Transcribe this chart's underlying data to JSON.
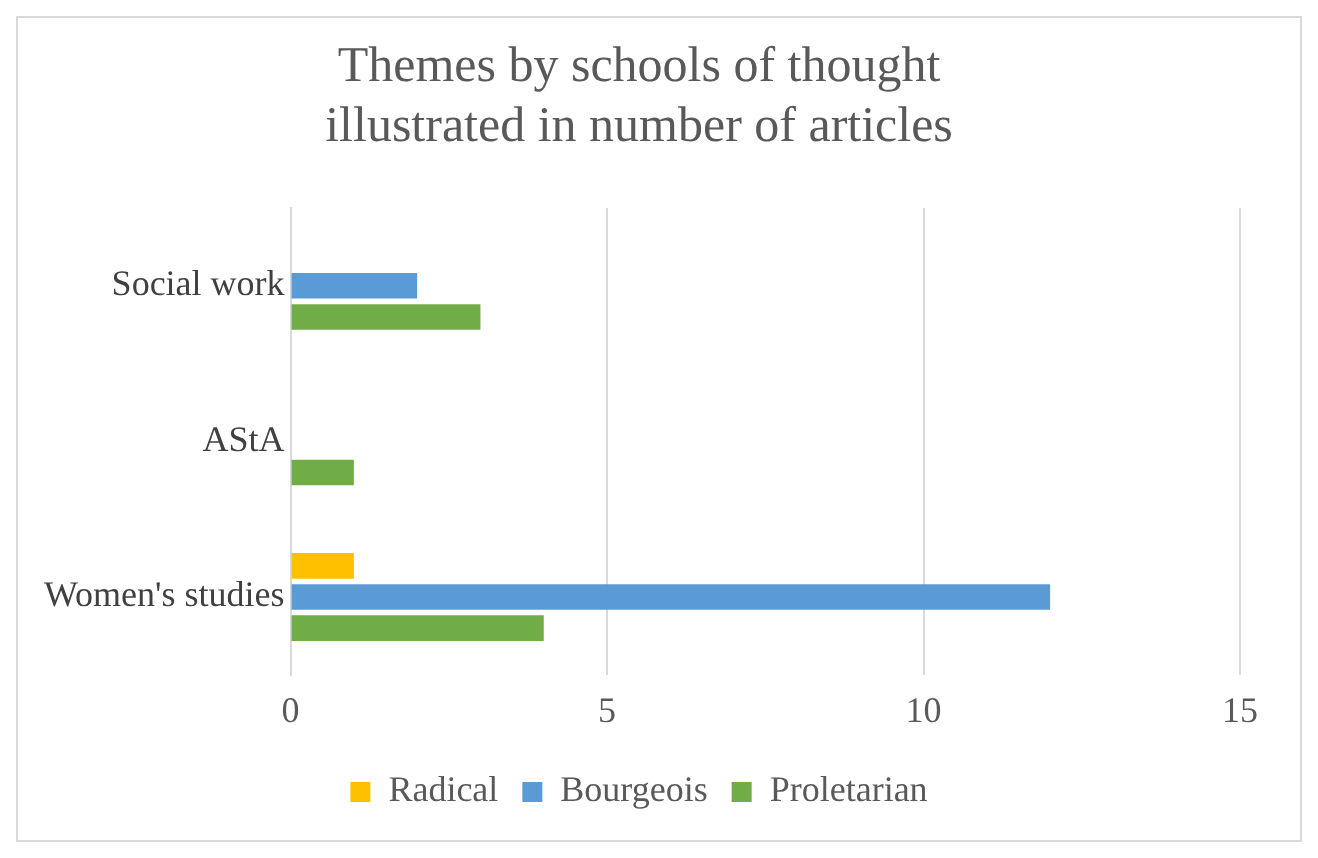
{
  "chart_data": {
    "type": "bar",
    "orientation": "horizontal",
    "title": "Themes by schools of thought illustrated in number of articles",
    "categories": [
      "Social work",
      "AStA",
      "Women's studies"
    ],
    "series": [
      {
        "name": "Radical",
        "color": "#ffc000",
        "values": [
          0,
          0,
          1
        ]
      },
      {
        "name": "Bourgeois",
        "color": "#5b9bd5",
        "values": [
          2,
          0,
          12
        ]
      },
      {
        "name": "Proletarian",
        "color": "#70ad47",
        "values": [
          3,
          1,
          4
        ]
      }
    ],
    "xlim": [
      0,
      15
    ],
    "xticks": [
      0,
      5,
      10,
      15
    ],
    "grid": "x",
    "legend": "bottom"
  }
}
